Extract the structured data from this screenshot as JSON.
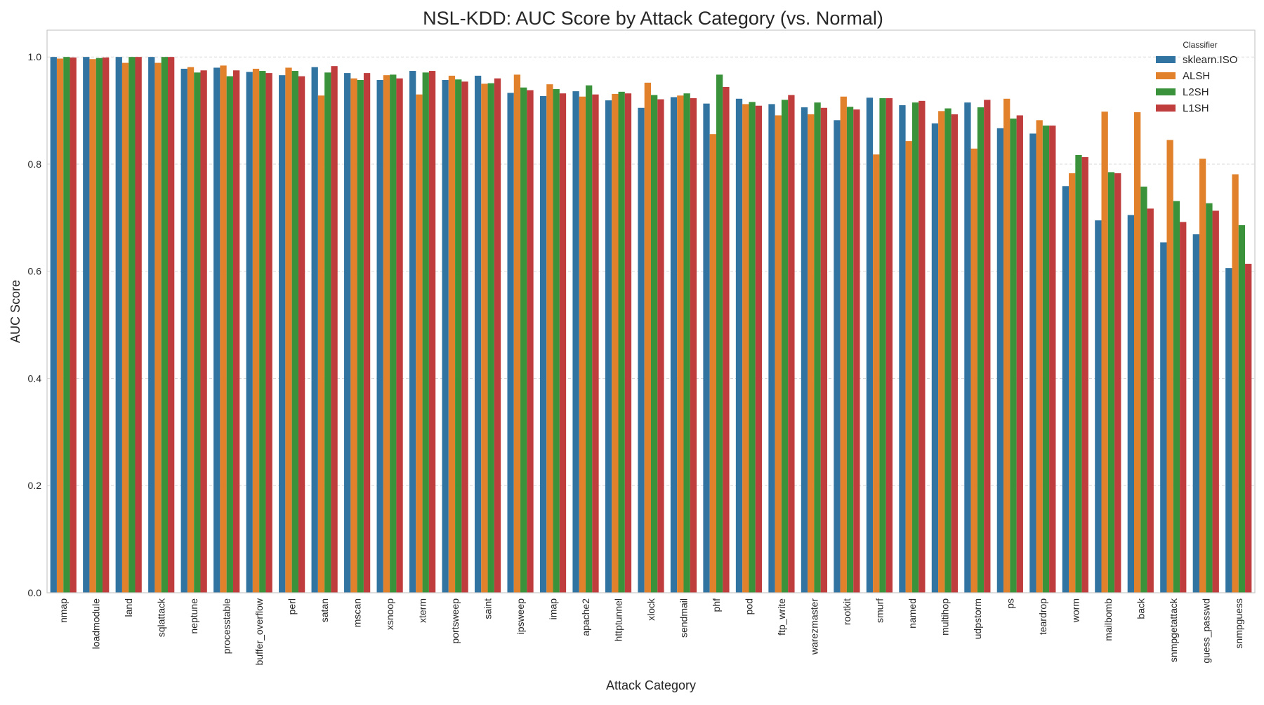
{
  "chart_data": {
    "type": "bar",
    "title": "NSL-KDD: AUC Score by Attack Category (vs. Normal)",
    "xlabel": "Attack Category",
    "ylabel": "AUC Score",
    "ylim": [
      0,
      1.05
    ],
    "yticks": [
      "0.0",
      "0.2",
      "0.4",
      "0.6",
      "0.8",
      "1.0"
    ],
    "grid": true,
    "legend": {
      "title": "Classifier",
      "placement": "top-right"
    },
    "categories": [
      "nmap",
      "loadmodule",
      "land",
      "sqlattack",
      "neptune",
      "processtable",
      "buffer_overflow",
      "perl",
      "satan",
      "mscan",
      "xsnoop",
      "xterm",
      "portsweep",
      "saint",
      "ipsweep",
      "imap",
      "apache2",
      "httptunnel",
      "xlock",
      "sendmail",
      "phf",
      "pod",
      "ftp_write",
      "warezmaster",
      "rootkit",
      "smurf",
      "named",
      "multihop",
      "udpstorm",
      "ps",
      "teardrop",
      "worm",
      "mailbomb",
      "back",
      "snmpgetattack",
      "guess_passwd",
      "snmpguess"
    ],
    "series": [
      {
        "name": "sklearn.ISO",
        "color": "#3274a1",
        "values": [
          1.0,
          1.0,
          1.0,
          1.0,
          0.978,
          0.98,
          0.972,
          0.966,
          0.981,
          0.97,
          0.957,
          0.974,
          0.957,
          0.965,
          0.933,
          0.927,
          0.936,
          0.919,
          0.905,
          0.925,
          0.913,
          0.922,
          0.912,
          0.906,
          0.882,
          0.924,
          0.91,
          0.876,
          0.915,
          0.867,
          0.857,
          0.759,
          0.695,
          0.705,
          0.654,
          0.669,
          0.606
        ]
      },
      {
        "name": "ALSH",
        "color": "#e1812c",
        "values": [
          0.997,
          0.996,
          0.989,
          0.989,
          0.981,
          0.984,
          0.978,
          0.98,
          0.928,
          0.96,
          0.966,
          0.93,
          0.965,
          0.95,
          0.967,
          0.949,
          0.926,
          0.931,
          0.952,
          0.928,
          0.856,
          0.912,
          0.891,
          0.893,
          0.926,
          0.818,
          0.843,
          0.899,
          0.829,
          0.922,
          0.882,
          0.783,
          0.898,
          0.897,
          0.845,
          0.81,
          0.781
        ]
      },
      {
        "name": "L2SH",
        "color": "#3a923a",
        "values": [
          1.0,
          0.998,
          1.0,
          1.0,
          0.971,
          0.964,
          0.974,
          0.974,
          0.971,
          0.957,
          0.967,
          0.971,
          0.958,
          0.951,
          0.943,
          0.94,
          0.947,
          0.935,
          0.929,
          0.932,
          0.967,
          0.916,
          0.92,
          0.915,
          0.907,
          0.923,
          0.915,
          0.904,
          0.906,
          0.885,
          0.872,
          0.817,
          0.785,
          0.758,
          0.731,
          0.727,
          0.686
        ]
      },
      {
        "name": "L1SH",
        "color": "#c03d3e",
        "values": [
          0.999,
          0.999,
          1.0,
          1.0,
          0.975,
          0.975,
          0.97,
          0.964,
          0.983,
          0.97,
          0.96,
          0.974,
          0.954,
          0.96,
          0.938,
          0.932,
          0.93,
          0.932,
          0.921,
          0.923,
          0.944,
          0.909,
          0.929,
          0.905,
          0.902,
          0.923,
          0.918,
          0.893,
          0.92,
          0.891,
          0.872,
          0.813,
          0.783,
          0.717,
          0.692,
          0.713,
          0.614
        ]
      }
    ]
  }
}
